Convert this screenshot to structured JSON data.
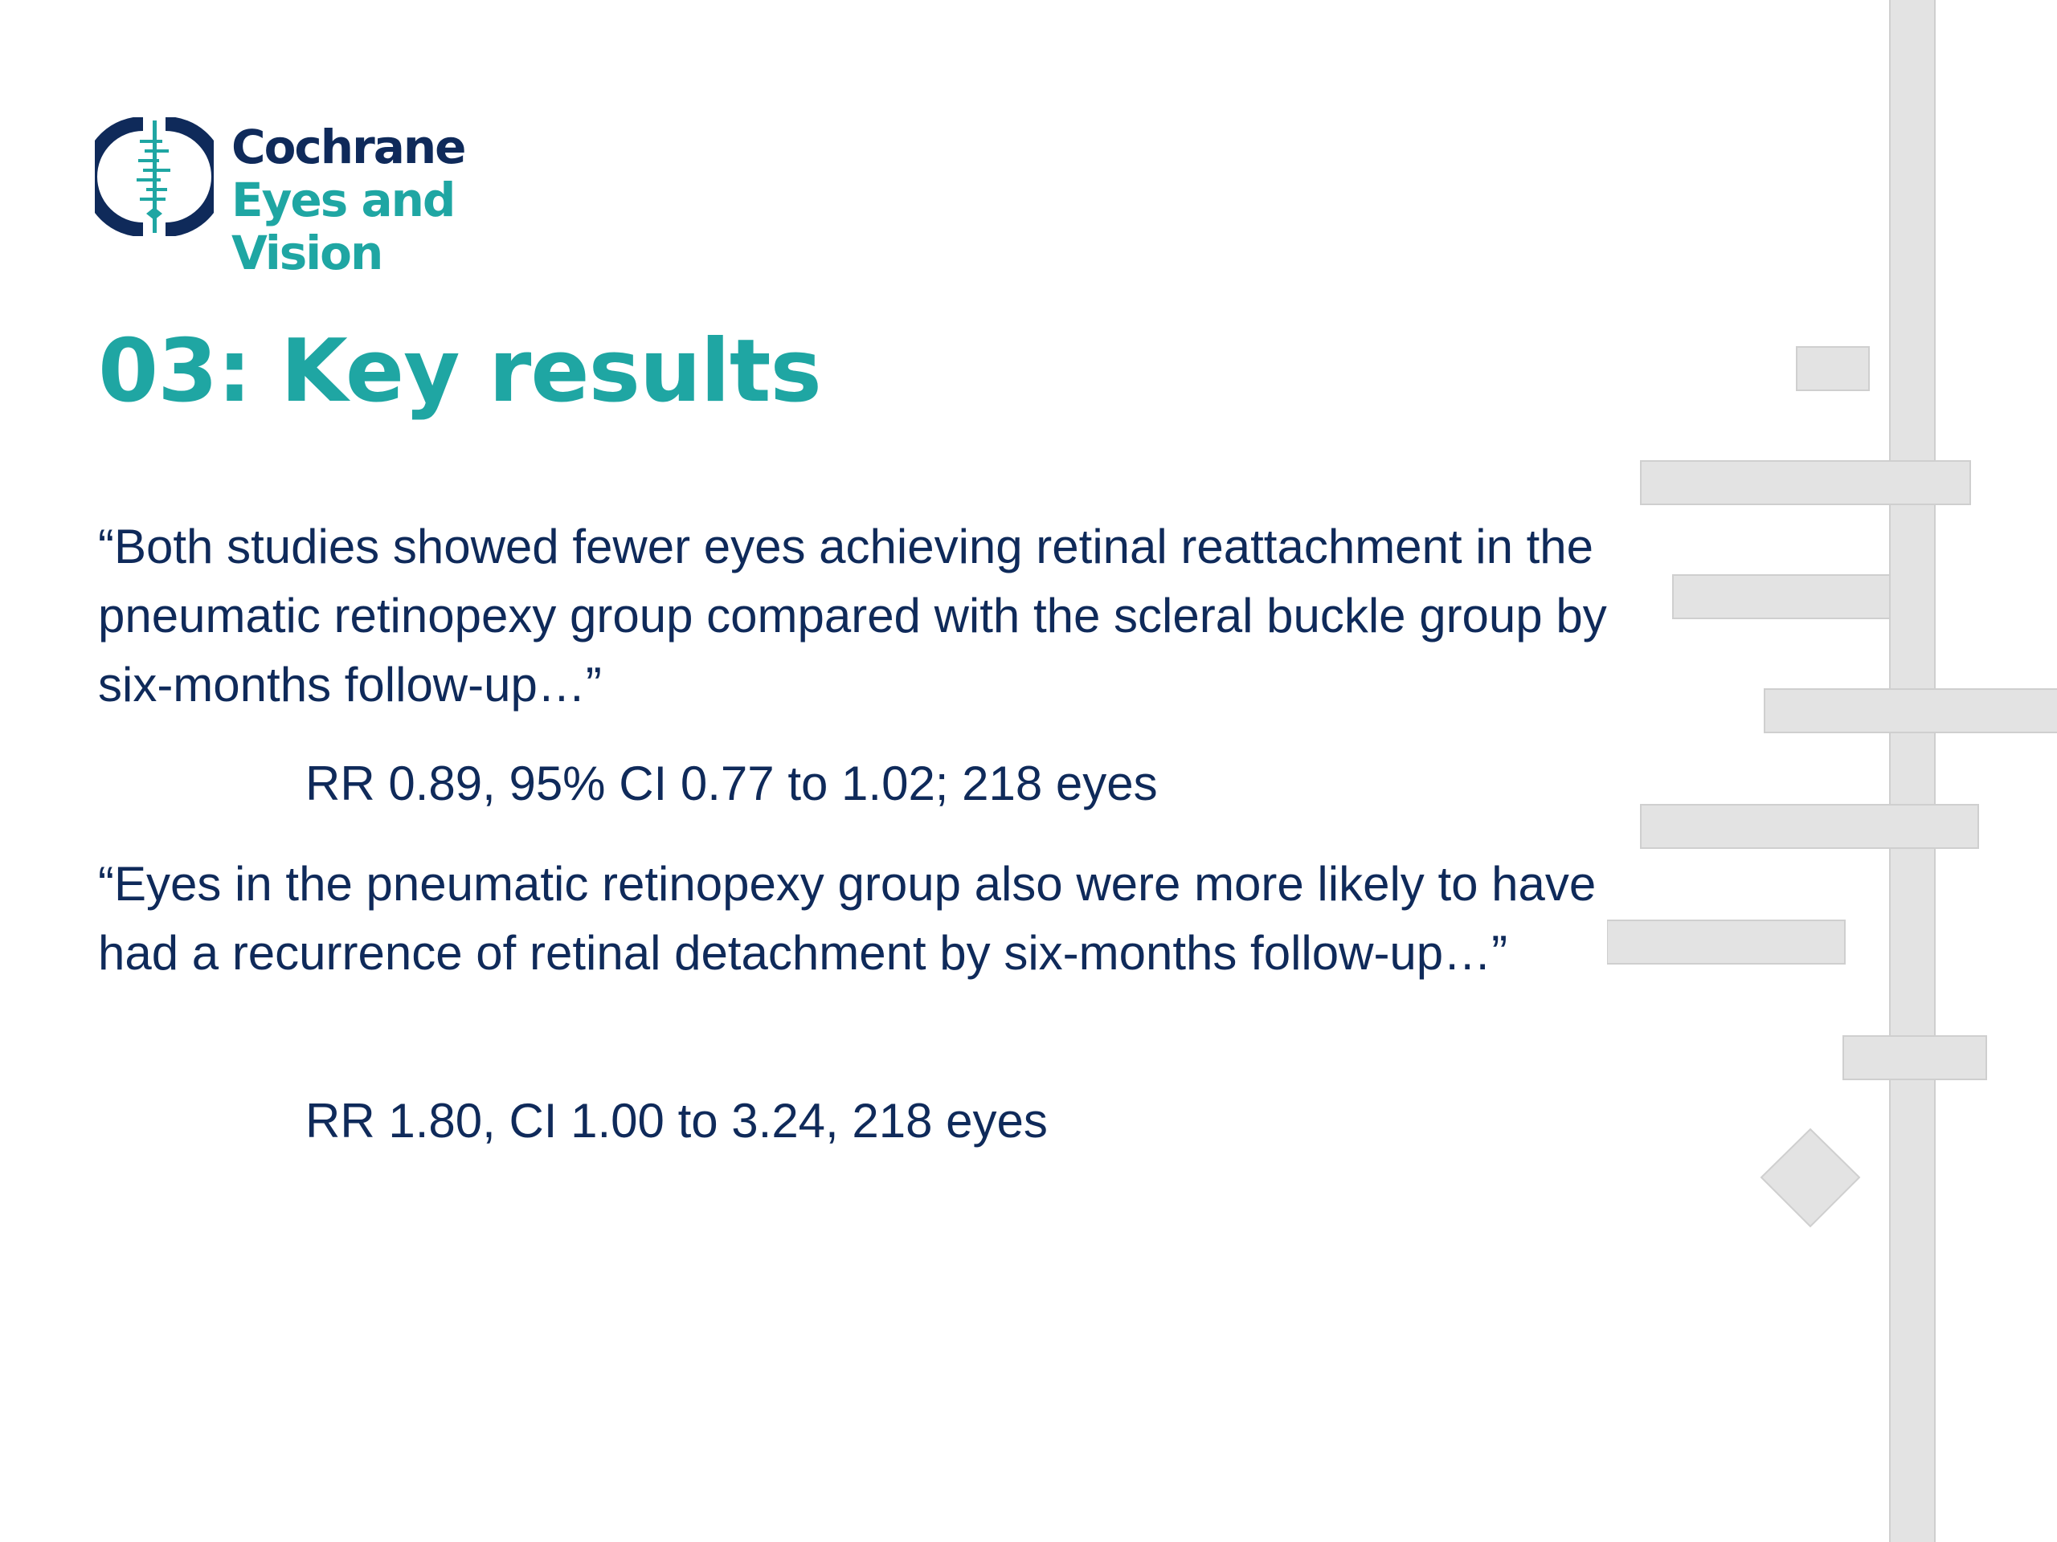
{
  "brand": {
    "name_line1": "Cochrane",
    "name_line2": "Eyes and Vision",
    "logo_icon": "cochrane-logo-icon",
    "colors": {
      "navy": "#0f2a5a",
      "teal": "#1fa6a3",
      "decoration": "#e3e3e3"
    }
  },
  "slide": {
    "title": "03: Key results",
    "findings": [
      {
        "quote": "“Both studies showed fewer eyes achieving retinal reattachment in the pneumatic retinopexy group compared with the scleral buckle group by six-months follow-up…”",
        "statistic": "RR 0.89, 95% CI 0.77 to 1.02; 218 eyes"
      },
      {
        "quote": "“Eyes in the pneumatic retinopexy group also were more likely to have had a recurrence of retinal detachment by six-months follow-up…”",
        "statistic": "RR 1.80, CI 1.00 to 3.24, 218 eyes"
      }
    ]
  }
}
